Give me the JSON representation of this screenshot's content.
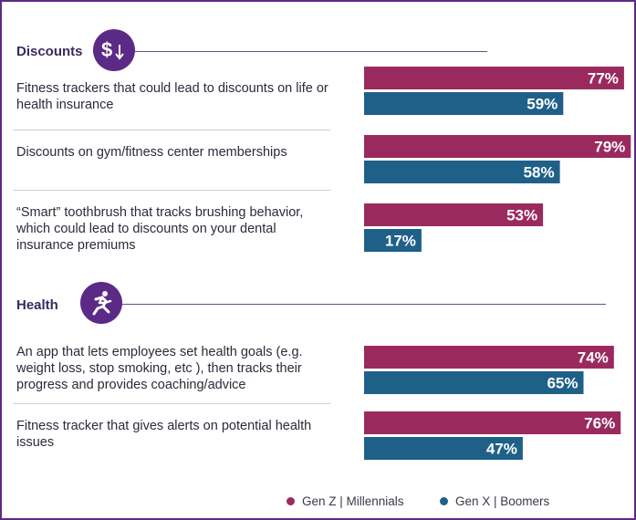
{
  "sections": [
    {
      "title": "Discounts",
      "icon": "dollar-down-icon",
      "questions": [
        {
          "label": "Fitness trackers that could lead to discounts on life or health insurance"
        },
        {
          "label": "Discounts on gym/fitness center memberships"
        },
        {
          "label": "“Smart” toothbrush that tracks brushing behavior, which could lead to discounts on your dental insurance premiums"
        }
      ]
    },
    {
      "title": "Health",
      "icon": "running-person-icon",
      "questions": [
        {
          "label": "An app that lets employees set health goals (e.g. weight loss, stop smoking, etc ), then tracks their progress and provides coaching/advice"
        },
        {
          "label": "Fitness tracker that gives alerts on potential health issues"
        }
      ]
    }
  ],
  "chart_data": {
    "type": "bar",
    "orientation": "horizontal",
    "categories": [
      "Fitness trackers that could lead to discounts on life or health insurance",
      "Discounts on gym/fitness center memberships",
      "“Smart” toothbrush that tracks brushing behavior, which could lead to discounts on your dental insurance premiums",
      "An app that lets employees set health goals (e.g. weight loss, stop smoking, etc ), then tracks their progress and provides coaching/advice",
      "Fitness tracker that gives alerts on potential health issues"
    ],
    "series": [
      {
        "name": "Gen Z | Millennials",
        "color": "#9a2a5e",
        "values": [
          77,
          79,
          53,
          74,
          76
        ],
        "labels": [
          "77%",
          "79%",
          "53%",
          "74%",
          "76%"
        ]
      },
      {
        "name": "Gen X | Boomers",
        "color": "#1f6088",
        "values": [
          59,
          58,
          17,
          65,
          47
        ],
        "labels": [
          "59%",
          "58%",
          "17%",
          "65%",
          "47%"
        ]
      }
    ],
    "xlim": [
      0,
      100
    ],
    "grid": false,
    "legend": "bottom-right"
  },
  "legend": {
    "items": [
      {
        "label": "Gen Z | Millennials",
        "color": "#9a2a5e"
      },
      {
        "label": "Gen X | Boomers",
        "color": "#1f6088"
      }
    ]
  }
}
